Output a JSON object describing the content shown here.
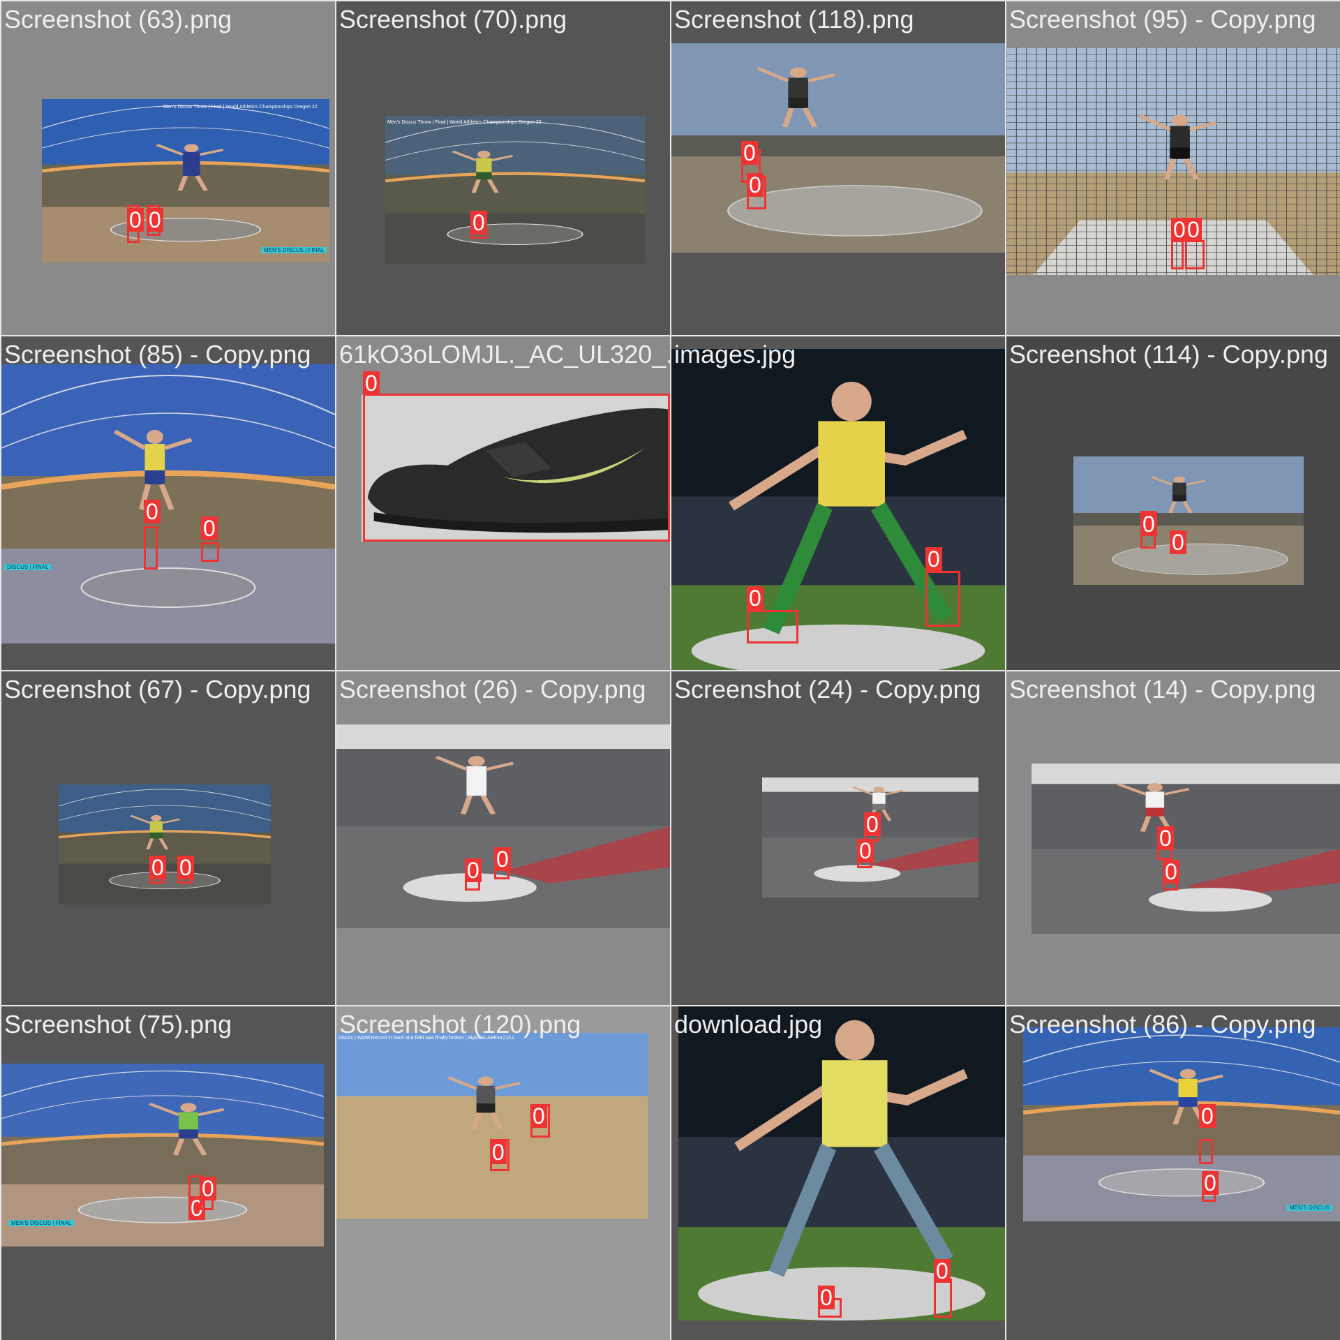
{
  "colors": {
    "detection": "#ee3333",
    "label_text": "#ffffff",
    "caption_text": "#efefef",
    "bg_mid": "#8a8a8a",
    "bg_dark": "#555555",
    "bg_darker": "#474747",
    "bg_light": "#9a9a9a"
  },
  "tiles": [
    {
      "filename": "Screenshot (63).png",
      "background": "#8a8a8a",
      "scene": "stadium-video",
      "detections": [
        "0",
        "0"
      ],
      "overlay_title": "Men's Discus Throw | Final | World Athletics Championships Oregon 22",
      "overlay_tag": "MEN'S DISCUS | FINAL"
    },
    {
      "filename": "Screenshot (70).png",
      "background": "#555555",
      "scene": "stadium-video-dark",
      "detections": [
        "0"
      ],
      "overlay_title": "Men's Discus Throw | Final | World Athletics Championships Oregon 22"
    },
    {
      "filename": "Screenshot (118).png",
      "background": "#555555",
      "scene": "outdoor-field",
      "detections": [
        "0",
        "0"
      ]
    },
    {
      "filename": "Screenshot (95) - Copy.png",
      "background": "#8a8a8a",
      "scene": "cage-net",
      "detections": [
        "0",
        "0"
      ]
    },
    {
      "filename": "Screenshot (85) - Copy.png",
      "background": "#555555",
      "scene": "stadium-wide",
      "detections": [
        "0",
        "0"
      ],
      "overlay_tag": "DISCUS | FINAL"
    },
    {
      "filename": "61kO3oLOMJL._AC_UL320_.jpg",
      "background": "#8a8a8a",
      "scene": "shoe",
      "detections": [
        "0"
      ]
    },
    {
      "filename": "images.jpg",
      "background": "#555555",
      "scene": "stadium-night",
      "detections": [
        "0",
        "0"
      ]
    },
    {
      "filename": "Screenshot (114) - Copy.png",
      "background": "#474747",
      "scene": "outdoor-field-small",
      "detections": [
        "0",
        "0"
      ]
    },
    {
      "filename": "Screenshot (67) - Copy.png",
      "background": "#555555",
      "scene": "stadium-video-small",
      "detections": [
        "0",
        "0"
      ]
    },
    {
      "filename": "Screenshot (26) - Copy.png",
      "background": "#8a8a8a",
      "scene": "indoor-throw",
      "detections": [
        "0",
        "0"
      ]
    },
    {
      "filename": "Screenshot (24) - Copy.png",
      "background": "#555555",
      "scene": "indoor-throw-small",
      "detections": [
        "0",
        "0"
      ]
    },
    {
      "filename": "Screenshot (14) - Copy.png",
      "background": "#8a8a8a",
      "scene": "indoor-throw-right",
      "detections": [
        "0",
        "0"
      ]
    },
    {
      "filename": "Screenshot (75).png",
      "background": "#555555",
      "scene": "stadium-wide-green",
      "detections": [
        "0",
        "0"
      ],
      "overlay_tag": "MEN'S DISCUS | FINAL"
    },
    {
      "filename": "Screenshot (120).png",
      "background": "#9a9a9a",
      "scene": "outdoor-video",
      "detections": [
        "0",
        "0"
      ],
      "overlay_title": "Discus | World Record in track and field was finally broken | Mykolas Alekna | ULL"
    },
    {
      "filename": "download.jpg",
      "background": "#555555",
      "scene": "stadium-night-close",
      "detections": [
        "0",
        "0"
      ]
    },
    {
      "filename": "Screenshot (86) - Copy.png",
      "background": "#555555",
      "scene": "stadium-wide-yellow",
      "detections": [
        "0",
        "0"
      ],
      "overlay_tag": "MEN'S DISCUS"
    }
  ]
}
